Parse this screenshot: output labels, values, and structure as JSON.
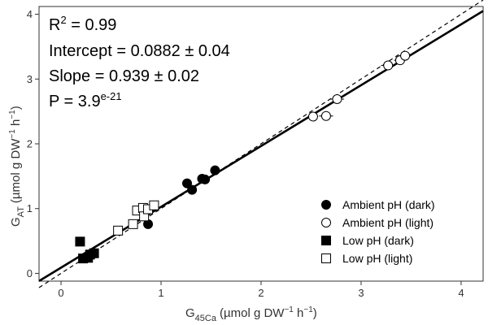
{
  "chart_data": {
    "type": "scatter",
    "x_axis": {
      "label_main": "G",
      "label_sub": "45Ca",
      "label_units": "(µmol g DW",
      "label_sup1": "−1",
      "label_h": " h",
      "label_sup2": "−1",
      "label_close": ")",
      "range": [
        -0.22,
        4.22
      ],
      "ticks": [
        0,
        1,
        2,
        3,
        4
      ],
      "tick_labels": [
        "0",
        "1",
        "2",
        "3",
        "4"
      ]
    },
    "y_axis": {
      "label_main": "G",
      "label_sub": "AT",
      "label_units": "(µmol g DW",
      "label_sup1": "−1",
      "label_h": " h",
      "label_sup2": "−1",
      "label_close": ")",
      "range": [
        -0.12,
        4.12
      ],
      "ticks": [
        0,
        1,
        2,
        3,
        4
      ],
      "tick_labels": [
        "0",
        "1",
        "2",
        "3",
        "4"
      ]
    },
    "annotations": {
      "r2_label": "R",
      "r2_sup": "2",
      "r2_value": " = 0.99",
      "intercept": "Intercept = 0.0882 ± 0.04",
      "slope": "Slope = 0.939 ± 0.02",
      "p_label": "P = 3.9",
      "p_sup": "e-21"
    },
    "fit_line": {
      "intercept": 0.0882,
      "slope": 0.939,
      "style": "solid"
    },
    "reference_line": {
      "intercept": 0,
      "slope": 1,
      "style": "dashed"
    },
    "legend": {
      "position": "bottom-right",
      "entries": [
        {
          "label": "Ambient pH (dark)",
          "marker": "circle",
          "filled": true
        },
        {
          "label": "Ambient pH (light)",
          "marker": "circle",
          "filled": false
        },
        {
          "label": "Low pH (dark)",
          "marker": "square",
          "filled": true
        },
        {
          "label": "Low pH (light)",
          "marker": "square",
          "filled": false
        }
      ]
    },
    "series": [
      {
        "name": "Ambient pH (dark)",
        "marker": "circle",
        "filled": true,
        "points": [
          {
            "x": 0.87,
            "y": 0.76
          },
          {
            "x": 1.26,
            "y": 1.39
          },
          {
            "x": 1.31,
            "y": 1.29
          },
          {
            "x": 1.41,
            "y": 1.46
          },
          {
            "x": 1.44,
            "y": 1.45
          },
          {
            "x": 1.54,
            "y": 1.59
          }
        ]
      },
      {
        "name": "Ambient pH (light)",
        "marker": "circle",
        "filled": false,
        "points": [
          {
            "x": 2.52,
            "y": 2.42,
            "xerr": 0.05
          },
          {
            "x": 2.65,
            "y": 2.43,
            "xerr": 0.07
          },
          {
            "x": 2.76,
            "y": 2.69,
            "xerr": 0.07
          },
          {
            "x": 3.27,
            "y": 3.21,
            "xerr": 0.07
          },
          {
            "x": 3.39,
            "y": 3.29,
            "xerr": 0.06
          },
          {
            "x": 3.44,
            "y": 3.36,
            "xerr": 0.06
          }
        ]
      },
      {
        "name": "Low pH (dark)",
        "marker": "square",
        "filled": true,
        "points": [
          {
            "x": 0.19,
            "y": 0.49
          },
          {
            "x": 0.22,
            "y": 0.23
          },
          {
            "x": 0.27,
            "y": 0.24
          },
          {
            "x": 0.29,
            "y": 0.29
          },
          {
            "x": 0.33,
            "y": 0.31
          }
        ]
      },
      {
        "name": "Low pH (light)",
        "marker": "square",
        "filled": false,
        "points": [
          {
            "x": 0.57,
            "y": 0.66
          },
          {
            "x": 0.72,
            "y": 0.76
          },
          {
            "x": 0.76,
            "y": 0.97
          },
          {
            "x": 0.82,
            "y": 1.01
          },
          {
            "x": 0.83,
            "y": 0.88
          },
          {
            "x": 0.87,
            "y": 0.99
          },
          {
            "x": 0.93,
            "y": 1.05
          }
        ]
      }
    ]
  }
}
